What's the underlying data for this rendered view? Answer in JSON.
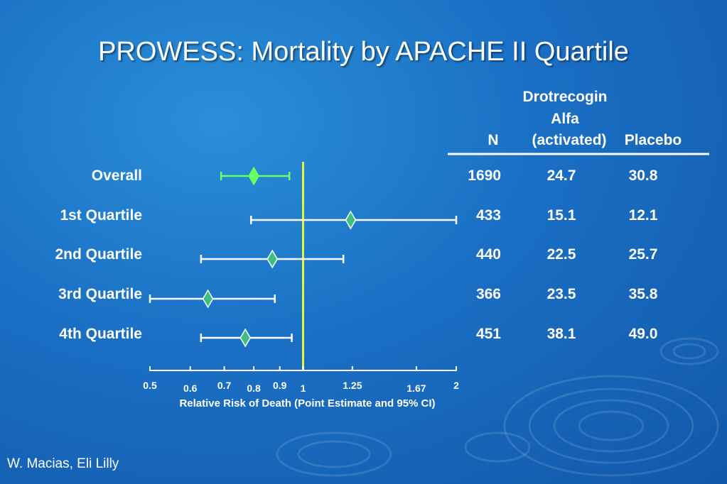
{
  "slide": {
    "title": "PROWESS: Mortality by APACHE II Quartile",
    "footer": "W. Macias, Eli Lilly"
  },
  "colors": {
    "reference_line": "#e6f53a",
    "overall_marker": "#66ff66",
    "quartile_marker": "#3fbf7f",
    "whisker": "#ffffff"
  },
  "table": {
    "headers": {
      "n": "N",
      "drug_line1": "Drotrecogin",
      "drug_line2": "Alfa",
      "drug_line3": "(activated)",
      "placebo": "Placebo"
    },
    "rows": [
      {
        "label": "Overall",
        "n": "1690",
        "drug": "24.7",
        "placebo": "30.8"
      },
      {
        "label": "1st Quartile",
        "n": "433",
        "drug": "15.1",
        "placebo": "12.1"
      },
      {
        "label": "2nd Quartile",
        "n": "440",
        "drug": "22.5",
        "placebo": "25.7"
      },
      {
        "label": "3rd Quartile",
        "n": "366",
        "drug": "23.5",
        "placebo": "35.8"
      },
      {
        "label": "4th Quartile",
        "n": "451",
        "drug": "38.1",
        "placebo": "49.0"
      }
    ]
  },
  "chart_data": {
    "type": "forest",
    "xlabel": "Relative Risk of Death (Point Estimate and 95% CI)",
    "x_scale": "log",
    "xlim": [
      0.5,
      2
    ],
    "reference_value": 1,
    "ticks": [
      {
        "value": 0.5,
        "label": "0.5"
      },
      {
        "value": 0.6,
        "label": "0.6"
      },
      {
        "value": 0.7,
        "label": "0.7"
      },
      {
        "value": 0.8,
        "label": "0.8"
      },
      {
        "value": 0.9,
        "label": "0.9"
      },
      {
        "value": 1,
        "label": "1"
      },
      {
        "value": 1.25,
        "label": "1.25"
      },
      {
        "value": 1.67,
        "label": "1.67"
      },
      {
        "value": 2,
        "label": "2"
      }
    ],
    "series": [
      {
        "category": "Overall",
        "estimate": 0.8,
        "lower": 0.69,
        "upper": 0.94
      },
      {
        "category": "1st Quartile",
        "estimate": 1.24,
        "lower": 0.79,
        "upper": 2.0
      },
      {
        "category": "2nd Quartile",
        "estimate": 0.87,
        "lower": 0.63,
        "upper": 1.2
      },
      {
        "category": "3rd Quartile",
        "estimate": 0.65,
        "lower": 0.5,
        "upper": 0.88
      },
      {
        "category": "4th Quartile",
        "estimate": 0.77,
        "lower": 0.63,
        "upper": 0.95
      }
    ]
  }
}
